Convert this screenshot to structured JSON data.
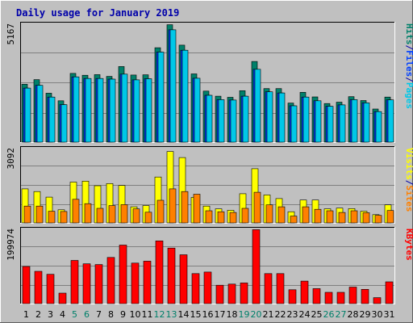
{
  "chart_data": [
    {
      "type": "bar",
      "panel": "pages-files-hits",
      "title": "Daily usage for January 2019",
      "y_max_label": "5167",
      "ylim": [
        0,
        5167
      ],
      "legend": [
        {
          "label": "Pages",
          "color": "#00c8e8"
        },
        {
          "label": "/",
          "color": "#0000aa"
        },
        {
          "label": "Files",
          "color": "#0040ff"
        },
        {
          "label": "/",
          "color": "#0000aa"
        },
        {
          "label": "Hits",
          "color": "#00806a"
        }
      ],
      "legend_placement": "right",
      "grid": true,
      "categories": [
        "1",
        "2",
        "3",
        "4",
        "5",
        "6",
        "7",
        "8",
        "9",
        "10",
        "11",
        "12",
        "13",
        "14",
        "15",
        "16",
        "17",
        "18",
        "19",
        "20",
        "21",
        "22",
        "23",
        "24",
        "25",
        "26",
        "27",
        "28",
        "29",
        "30",
        "31"
      ],
      "series": [
        {
          "name": "Hits",
          "color": "#00806a",
          "values": [
            2520,
            2720,
            2130,
            1800,
            2990,
            2910,
            2940,
            2860,
            3290,
            2920,
            2930,
            4110,
            5110,
            4220,
            2970,
            2220,
            2000,
            1950,
            2240,
            3510,
            2330,
            2330,
            1700,
            2170,
            1970,
            1680,
            1740,
            1980,
            1810,
            1440,
            1960
          ]
        },
        {
          "name": "Files",
          "color": "#0040ff",
          "values": [
            2350,
            2470,
            1960,
            1630,
            2840,
            2770,
            2770,
            2740,
            2960,
            2710,
            2760,
            3920,
            4890,
            4000,
            2780,
            2040,
            1850,
            1830,
            2000,
            3170,
            2190,
            2140,
            1580,
            1960,
            1800,
            1560,
            1620,
            1850,
            1710,
            1330,
            1840
          ]
        },
        {
          "name": "Pages",
          "color": "#00c8e8",
          "values": [
            2350,
            2470,
            1960,
            1630,
            2840,
            2770,
            2770,
            2740,
            2960,
            2710,
            2760,
            3920,
            4890,
            4000,
            2780,
            2040,
            1850,
            1830,
            2000,
            3170,
            2190,
            2140,
            1580,
            1960,
            1800,
            1560,
            1620,
            1850,
            1710,
            1330,
            1840
          ]
        }
      ]
    },
    {
      "type": "bar",
      "panel": "sites-visits",
      "y_max_label": "3092",
      "ylim": [
        0,
        3092
      ],
      "legend": [
        {
          "label": "Sites",
          "color": "#ff8000"
        },
        {
          "label": "/",
          "color": "#0000aa"
        },
        {
          "label": "Visits",
          "color": "#ffff00"
        }
      ],
      "legend_placement": "right",
      "grid": true,
      "categories": [
        "1",
        "2",
        "3",
        "4",
        "5",
        "6",
        "7",
        "8",
        "9",
        "10",
        "11",
        "12",
        "13",
        "14",
        "15",
        "16",
        "17",
        "18",
        "19",
        "20",
        "21",
        "22",
        "23",
        "24",
        "25",
        "26",
        "27",
        "28",
        "29",
        "30",
        "31"
      ],
      "series": [
        {
          "name": "Visits",
          "color": "#ffff00",
          "values": [
            1400,
            1290,
            1060,
            540,
            1680,
            1720,
            1530,
            1620,
            1540,
            660,
            710,
            1890,
            2940,
            2690,
            1050,
            690,
            580,
            520,
            1200,
            2230,
            1150,
            1000,
            460,
            940,
            940,
            580,
            610,
            590,
            480,
            340,
            740
          ]
        },
        {
          "name": "Sites",
          "color": "#ff8000",
          "values": [
            690,
            690,
            480,
            470,
            970,
            790,
            600,
            710,
            750,
            580,
            440,
            930,
            1400,
            1290,
            1180,
            500,
            460,
            430,
            600,
            1260,
            740,
            660,
            280,
            660,
            560,
            500,
            430,
            500,
            420,
            310,
            510
          ]
        }
      ]
    },
    {
      "type": "bar",
      "panel": "kbytes",
      "y_max_label": "199974",
      "ylim": [
        0,
        199974
      ],
      "legend": [
        {
          "label": "KBytes",
          "color": "#ff0000"
        }
      ],
      "legend_placement": "right",
      "grid": true,
      "categories": [
        "1",
        "2",
        "3",
        "4",
        "5",
        "6",
        "7",
        "8",
        "9",
        "10",
        "11",
        "12",
        "13",
        "14",
        "15",
        "16",
        "17",
        "18",
        "19",
        "20",
        "21",
        "22",
        "23",
        "24",
        "25",
        "26",
        "27",
        "28",
        "29",
        "30",
        "31"
      ],
      "series": [
        {
          "name": "KBytes",
          "color": "#ff0000",
          "values": [
            99000,
            86000,
            78000,
            28000,
            115000,
            106000,
            104000,
            123000,
            156000,
            108000,
            113000,
            167000,
            148000,
            130000,
            80000,
            84000,
            49000,
            52000,
            55000,
            197000,
            80000,
            80000,
            37000,
            60000,
            40000,
            30000,
            30000,
            44000,
            38000,
            16000,
            58000
          ]
        }
      ]
    }
  ],
  "x_axis": {
    "labels": [
      "1",
      "2",
      "3",
      "4",
      "5",
      "6",
      "7",
      "8",
      "9",
      "10",
      "11",
      "12",
      "13",
      "14",
      "15",
      "16",
      "17",
      "18",
      "19",
      "20",
      "21",
      "22",
      "23",
      "24",
      "25",
      "26",
      "27",
      "28",
      "29",
      "30",
      "31"
    ],
    "weekend_days": [
      "5",
      "6",
      "12",
      "13",
      "19",
      "20",
      "26",
      "27"
    ],
    "weekday_color": "#000000",
    "weekend_color": "#00806a"
  },
  "colors": {
    "background": "#c0c0c0",
    "title": "#0000aa",
    "grid": "#808080",
    "bevel_light": "#ffffff",
    "bevel_dark": "#808080",
    "bar_border": "#000000"
  }
}
